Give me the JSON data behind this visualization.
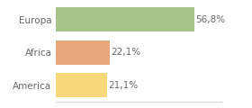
{
  "categories": [
    "Europa",
    "Africa",
    "America"
  ],
  "values": [
    56.8,
    22.1,
    21.1
  ],
  "labels": [
    "56,8%",
    "22,1%",
    "21,1%"
  ],
  "bar_colors": [
    "#a8c48a",
    "#e8a87c",
    "#f5d87a"
  ],
  "background_color": "#ffffff",
  "xlim": [
    0,
    68
  ],
  "bar_height": 0.75,
  "label_fontsize": 7.5,
  "ylabel_fontsize": 7.5
}
